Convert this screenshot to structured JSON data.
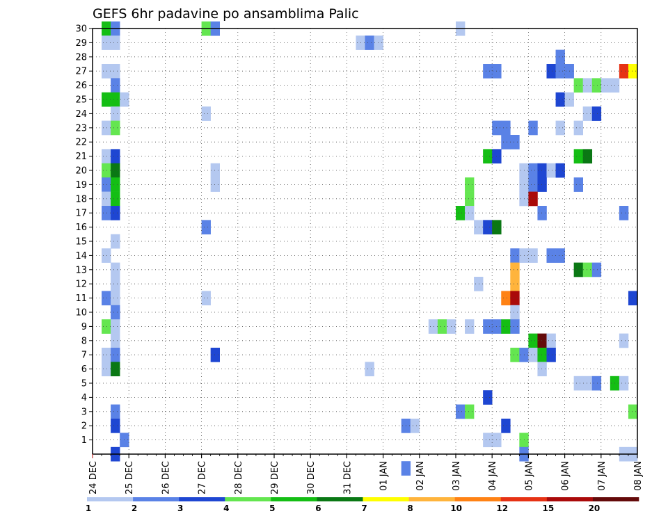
{
  "chart_data": {
    "type": "heatmap",
    "title": "GEFS 6hr padavine po ansamblima Palic",
    "y_ticks": [
      1,
      2,
      3,
      4,
      5,
      6,
      7,
      8,
      9,
      10,
      11,
      12,
      13,
      14,
      15,
      16,
      17,
      18,
      19,
      20,
      21,
      22,
      23,
      24,
      25,
      26,
      27,
      28,
      29,
      30
    ],
    "x_ticks": [
      "24 DEC",
      "25 DEC",
      "26 DEC",
      "27 DEC",
      "28 DEC",
      "29 DEC",
      "30 DEC",
      "31 DEC",
      "01 JAN",
      "02 JAN",
      "03 JAN",
      "04 JAN",
      "05 JAN",
      "06 JAN",
      "07 JAN",
      "08 JAN"
    ],
    "steps_per_day": 4,
    "grid": "dotted",
    "legend": {
      "position": "bottom",
      "labels": [
        "1",
        "2",
        "3",
        "4",
        "5",
        "6",
        "7",
        "8",
        "10",
        "12",
        "15",
        "20"
      ],
      "colors": [
        "#b4c8f0",
        "#5a82e6",
        "#1e46d2",
        "#64e650",
        "#14be14",
        "#0a7814",
        "#ffff00",
        "#ffb43c",
        "#ff8214",
        "#e63214",
        "#aa0a0a",
        "#640a0a"
      ]
    },
    "cells": [
      {
        "m": 30,
        "t": 1,
        "c": 4
      },
      {
        "m": 30,
        "t": 2,
        "c": 1
      },
      {
        "m": 30,
        "t": 12,
        "c": 3
      },
      {
        "m": 30,
        "t": 13,
        "c": 1
      },
      {
        "m": 30,
        "t": 40,
        "c": 0
      },
      {
        "m": 29,
        "t": 1,
        "c": 0
      },
      {
        "m": 29,
        "t": 2,
        "c": 0
      },
      {
        "m": 29,
        "t": 29,
        "c": 0
      },
      {
        "m": 29,
        "t": 30,
        "c": 1
      },
      {
        "m": 29,
        "t": 31,
        "c": 0
      },
      {
        "m": 28,
        "t": 51,
        "c": 1
      },
      {
        "m": 27,
        "t": 1,
        "c": 0
      },
      {
        "m": 27,
        "t": 2,
        "c": 0
      },
      {
        "m": 27,
        "t": 43,
        "c": 1
      },
      {
        "m": 27,
        "t": 44,
        "c": 1
      },
      {
        "m": 27,
        "t": 50,
        "c": 2
      },
      {
        "m": 27,
        "t": 51,
        "c": 1
      },
      {
        "m": 27,
        "t": 52,
        "c": 1
      },
      {
        "m": 27,
        "t": 58,
        "c": 9
      },
      {
        "m": 27,
        "t": 59,
        "c": 6
      },
      {
        "m": 26,
        "t": 2,
        "c": 1
      },
      {
        "m": 26,
        "t": 53,
        "c": 3
      },
      {
        "m": 26,
        "t": 54,
        "c": 0
      },
      {
        "m": 26,
        "t": 55,
        "c": 3
      },
      {
        "m": 26,
        "t": 56,
        "c": 0
      },
      {
        "m": 26,
        "t": 57,
        "c": 0
      },
      {
        "m": 25,
        "t": 1,
        "c": 4
      },
      {
        "m": 25,
        "t": 2,
        "c": 4
      },
      {
        "m": 25,
        "t": 3,
        "c": 0
      },
      {
        "m": 25,
        "t": 51,
        "c": 2
      },
      {
        "m": 25,
        "t": 52,
        "c": 0
      },
      {
        "m": 24,
        "t": 2,
        "c": 0
      },
      {
        "m": 24,
        "t": 12,
        "c": 0
      },
      {
        "m": 24,
        "t": 54,
        "c": 0
      },
      {
        "m": 24,
        "t": 55,
        "c": 2
      },
      {
        "m": 23,
        "t": 1,
        "c": 0
      },
      {
        "m": 23,
        "t": 2,
        "c": 3
      },
      {
        "m": 23,
        "t": 44,
        "c": 1
      },
      {
        "m": 23,
        "t": 45,
        "c": 1
      },
      {
        "m": 23,
        "t": 48,
        "c": 1
      },
      {
        "m": 23,
        "t": 51,
        "c": 0
      },
      {
        "m": 23,
        "t": 53,
        "c": 0
      },
      {
        "m": 22,
        "t": 45,
        "c": 1
      },
      {
        "m": 22,
        "t": 46,
        "c": 1
      },
      {
        "m": 21,
        "t": 1,
        "c": 0
      },
      {
        "m": 21,
        "t": 2,
        "c": 2
      },
      {
        "m": 21,
        "t": 43,
        "c": 4
      },
      {
        "m": 21,
        "t": 44,
        "c": 2
      },
      {
        "m": 21,
        "t": 53,
        "c": 4
      },
      {
        "m": 21,
        "t": 54,
        "c": 5
      },
      {
        "m": 20,
        "t": 1,
        "c": 3
      },
      {
        "m": 20,
        "t": 2,
        "c": 5
      },
      {
        "m": 20,
        "t": 13,
        "c": 0
      },
      {
        "m": 20,
        "t": 47,
        "c": 0
      },
      {
        "m": 20,
        "t": 48,
        "c": 1
      },
      {
        "m": 20,
        "t": 49,
        "c": 2
      },
      {
        "m": 20,
        "t": 50,
        "c": 0
      },
      {
        "m": 20,
        "t": 51,
        "c": 2
      },
      {
        "m": 19,
        "t": 1,
        "c": 1
      },
      {
        "m": 19,
        "t": 2,
        "c": 4
      },
      {
        "m": 19,
        "t": 13,
        "c": 0
      },
      {
        "m": 19,
        "t": 41,
        "c": 3
      },
      {
        "m": 19,
        "t": 47,
        "c": 0
      },
      {
        "m": 19,
        "t": 48,
        "c": 1
      },
      {
        "m": 19,
        "t": 49,
        "c": 2
      },
      {
        "m": 19,
        "t": 53,
        "c": 1
      },
      {
        "m": 18,
        "t": 1,
        "c": 0
      },
      {
        "m": 18,
        "t": 2,
        "c": 4
      },
      {
        "m": 18,
        "t": 41,
        "c": 3
      },
      {
        "m": 18,
        "t": 47,
        "c": 0
      },
      {
        "m": 18,
        "t": 48,
        "c": 10
      },
      {
        "m": 17,
        "t": 1,
        "c": 1
      },
      {
        "m": 17,
        "t": 2,
        "c": 2
      },
      {
        "m": 17,
        "t": 40,
        "c": 4
      },
      {
        "m": 17,
        "t": 41,
        "c": 0
      },
      {
        "m": 17,
        "t": 49,
        "c": 1
      },
      {
        "m": 17,
        "t": 58,
        "c": 1
      },
      {
        "m": 16,
        "t": 12,
        "c": 1
      },
      {
        "m": 16,
        "t": 42,
        "c": 0
      },
      {
        "m": 16,
        "t": 43,
        "c": 2
      },
      {
        "m": 16,
        "t": 44,
        "c": 5
      },
      {
        "m": 15,
        "t": 2,
        "c": 0
      },
      {
        "m": 14,
        "t": 1,
        "c": 0
      },
      {
        "m": 14,
        "t": 46,
        "c": 1
      },
      {
        "m": 14,
        "t": 47,
        "c": 0
      },
      {
        "m": 14,
        "t": 48,
        "c": 0
      },
      {
        "m": 14,
        "t": 50,
        "c": 1
      },
      {
        "m": 14,
        "t": 51,
        "c": 1
      },
      {
        "m": 13,
        "t": 2,
        "c": 0
      },
      {
        "m": 13,
        "t": 46,
        "c": 7
      },
      {
        "m": 13,
        "t": 53,
        "c": 5
      },
      {
        "m": 13,
        "t": 54,
        "c": 3
      },
      {
        "m": 13,
        "t": 55,
        "c": 1
      },
      {
        "m": 12,
        "t": 2,
        "c": 0
      },
      {
        "m": 12,
        "t": 42,
        "c": 0
      },
      {
        "m": 12,
        "t": 46,
        "c": 7
      },
      {
        "m": 11,
        "t": 1,
        "c": 1
      },
      {
        "m": 11,
        "t": 2,
        "c": 0
      },
      {
        "m": 11,
        "t": 12,
        "c": 0
      },
      {
        "m": 11,
        "t": 45,
        "c": 8
      },
      {
        "m": 11,
        "t": 46,
        "c": 10
      },
      {
        "m": 11,
        "t": 59,
        "c": 2
      },
      {
        "m": 10,
        "t": 2,
        "c": 1
      },
      {
        "m": 10,
        "t": 46,
        "c": 0
      },
      {
        "m": 9,
        "t": 1,
        "c": 3
      },
      {
        "m": 9,
        "t": 2,
        "c": 0
      },
      {
        "m": 9,
        "t": 37,
        "c": 0
      },
      {
        "m": 9,
        "t": 38,
        "c": 3
      },
      {
        "m": 9,
        "t": 39,
        "c": 0
      },
      {
        "m": 9,
        "t": 41,
        "c": 0
      },
      {
        "m": 9,
        "t": 43,
        "c": 1
      },
      {
        "m": 9,
        "t": 44,
        "c": 1
      },
      {
        "m": 9,
        "t": 45,
        "c": 4
      },
      {
        "m": 9,
        "t": 46,
        "c": 1
      },
      {
        "m": 8,
        "t": 2,
        "c": 0
      },
      {
        "m": 8,
        "t": 48,
        "c": 4
      },
      {
        "m": 8,
        "t": 49,
        "c": 11
      },
      {
        "m": 8,
        "t": 50,
        "c": 0
      },
      {
        "m": 8,
        "t": 58,
        "c": 0
      },
      {
        "m": 7,
        "t": 1,
        "c": 0
      },
      {
        "m": 7,
        "t": 2,
        "c": 1
      },
      {
        "m": 7,
        "t": 13,
        "c": 2
      },
      {
        "m": 7,
        "t": 46,
        "c": 3
      },
      {
        "m": 7,
        "t": 47,
        "c": 1
      },
      {
        "m": 7,
        "t": 48,
        "c": 0
      },
      {
        "m": 7,
        "t": 49,
        "c": 4
      },
      {
        "m": 7,
        "t": 50,
        "c": 2
      },
      {
        "m": 6,
        "t": 1,
        "c": 0
      },
      {
        "m": 6,
        "t": 2,
        "c": 5
      },
      {
        "m": 6,
        "t": 30,
        "c": 0
      },
      {
        "m": 6,
        "t": 49,
        "c": 0
      },
      {
        "m": 5,
        "t": 53,
        "c": 0
      },
      {
        "m": 5,
        "t": 54,
        "c": 0
      },
      {
        "m": 5,
        "t": 55,
        "c": 1
      },
      {
        "m": 5,
        "t": 57,
        "c": 4
      },
      {
        "m": 5,
        "t": 58,
        "c": 0
      },
      {
        "m": 4,
        "t": 43,
        "c": 2
      },
      {
        "m": 3,
        "t": 2,
        "c": 1
      },
      {
        "m": 3,
        "t": 40,
        "c": 1
      },
      {
        "m": 3,
        "t": 41,
        "c": 3
      },
      {
        "m": 3,
        "t": 59,
        "c": 3
      },
      {
        "m": 2,
        "t": 2,
        "c": 2
      },
      {
        "m": 2,
        "t": 34,
        "c": 1
      },
      {
        "m": 2,
        "t": 35,
        "c": 0
      },
      {
        "m": 2,
        "t": 45,
        "c": 2
      },
      {
        "m": 1,
        "t": 3,
        "c": 1
      },
      {
        "m": 1,
        "t": 43,
        "c": 0
      },
      {
        "m": 1,
        "t": 44,
        "c": 0
      },
      {
        "m": 1,
        "t": 47,
        "c": 3
      },
      {
        "m": 0,
        "t": 2,
        "c": 2
      },
      {
        "m": 0,
        "t": 47,
        "c": 1
      },
      {
        "m": 0,
        "t": 58,
        "c": 0
      },
      {
        "m": 0,
        "t": 59,
        "c": 0
      },
      {
        "m": -1,
        "t": 34,
        "c": 1
      }
    ]
  }
}
